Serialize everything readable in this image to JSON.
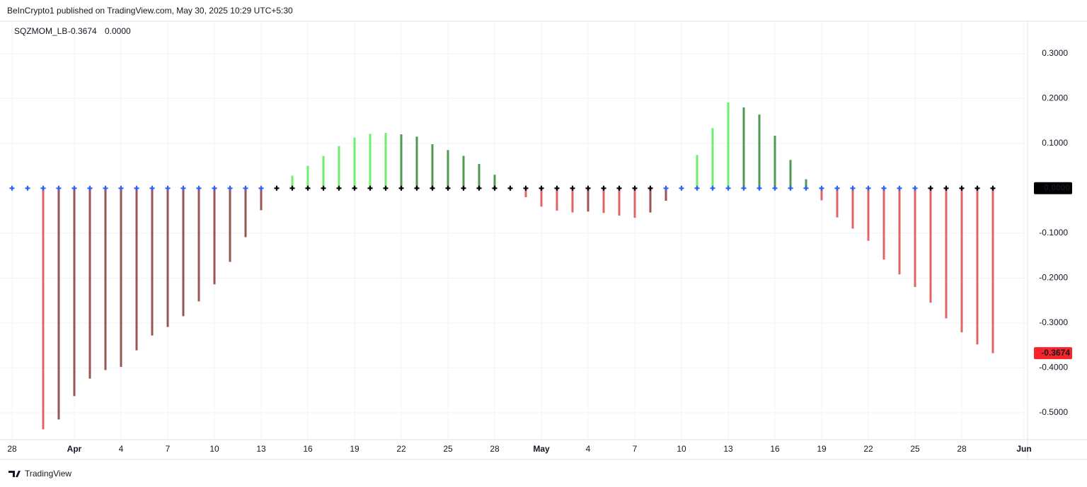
{
  "header": {
    "publisher": "BeInCrypto1 published on TradingView.com, May 30, 2025 10:29 UTC+5:30",
    "brand": "TradingView"
  },
  "chart_data": {
    "type": "bar",
    "title": "SQZMOM_LB",
    "x": [
      "Mar 28",
      "Mar 29",
      "Mar 30",
      "Mar 31",
      "Apr 1",
      "Apr 2",
      "Apr 3",
      "Apr 4",
      "Apr 5",
      "Apr 6",
      "Apr 7",
      "Apr 8",
      "Apr 9",
      "Apr 10",
      "Apr 11",
      "Apr 12",
      "Apr 13",
      "Apr 14",
      "Apr 15",
      "Apr 16",
      "Apr 17",
      "Apr 18",
      "Apr 19",
      "Apr 20",
      "Apr 21",
      "Apr 22",
      "Apr 23",
      "Apr 24",
      "Apr 25",
      "Apr 26",
      "Apr 27",
      "Apr 28",
      "Apr 29",
      "Apr 30",
      "May 1",
      "May 2",
      "May 3",
      "May 4",
      "May 5",
      "May 6",
      "May 7",
      "May 8",
      "May 9",
      "May 10",
      "May 11",
      "May 12",
      "May 13",
      "May 14",
      "May 15",
      "May 16",
      "May 17",
      "May 18",
      "May 19",
      "May 20",
      "May 21",
      "May 22",
      "May 23",
      "May 24",
      "May 25",
      "May 26",
      "May 27",
      "May 28",
      "May 29",
      "May 30"
    ],
    "series": [
      {
        "name": "momentum",
        "values": [
          null,
          null,
          -0.537,
          -0.515,
          -0.463,
          -0.424,
          -0.405,
          -0.398,
          -0.361,
          -0.328,
          -0.309,
          -0.285,
          -0.252,
          -0.214,
          -0.164,
          -0.109,
          -0.049,
          0,
          0.028,
          0.05,
          0.072,
          0.094,
          0.113,
          0.121,
          0.123,
          0.12,
          0.115,
          0.098,
          0.085,
          0.072,
          0.054,
          0.03,
          0,
          -0.02,
          -0.041,
          -0.05,
          -0.054,
          -0.052,
          -0.055,
          -0.061,
          -0.066,
          -0.054,
          -0.028,
          0,
          0.074,
          0.134,
          0.191,
          0.18,
          0.164,
          0.117,
          0.063,
          0.02,
          -0.027,
          -0.065,
          -0.09,
          -0.117,
          -0.159,
          -0.192,
          -0.22,
          -0.255,
          -0.29,
          -0.321,
          -0.348,
          -0.3674
        ],
        "palette": {
          "up_rising": "#6cf06c",
          "up_falling": "#4e9a4e",
          "down_falling": "#e06666",
          "down_rising": "#9b5450"
        }
      },
      {
        "name": "squeeze",
        "values": [
          0,
          0,
          0,
          0,
          0,
          0,
          0,
          0,
          0,
          0,
          0,
          0,
          0,
          0,
          0,
          0,
          0,
          0,
          0,
          0,
          0,
          0,
          0,
          0,
          0,
          0,
          0,
          0,
          0,
          0,
          0,
          0,
          0,
          0,
          0,
          0,
          0,
          0,
          0,
          0,
          0,
          0,
          0,
          0,
          0,
          0,
          0,
          0,
          0,
          0,
          0,
          0,
          0,
          0,
          0,
          0,
          0,
          0,
          0,
          0,
          0,
          0,
          0,
          0
        ],
        "colors": [
          "#2962ff",
          "#2962ff",
          "#2962ff",
          "#2962ff",
          "#2962ff",
          "#2962ff",
          "#2962ff",
          "#2962ff",
          "#2962ff",
          "#2962ff",
          "#2962ff",
          "#2962ff",
          "#2962ff",
          "#2962ff",
          "#2962ff",
          "#2962ff",
          "#2962ff",
          "#000000",
          "#000000",
          "#000000",
          "#000000",
          "#000000",
          "#000000",
          "#000000",
          "#000000",
          "#000000",
          "#000000",
          "#000000",
          "#000000",
          "#000000",
          "#000000",
          "#000000",
          "#000000",
          "#000000",
          "#000000",
          "#000000",
          "#000000",
          "#000000",
          "#000000",
          "#000000",
          "#000000",
          "#000000",
          "#2962ff",
          "#2962ff",
          "#2962ff",
          "#2962ff",
          "#2962ff",
          "#2962ff",
          "#2962ff",
          "#2962ff",
          "#2962ff",
          "#2962ff",
          "#2962ff",
          "#2962ff",
          "#2962ff",
          "#2962ff",
          "#2962ff",
          "#2962ff",
          "#2962ff",
          "#000000",
          "#000000",
          "#000000",
          "#000000",
          "#000000"
        ]
      }
    ],
    "price_labels": [
      {
        "value": 0,
        "label": "0.0000",
        "color": "#000000"
      },
      {
        "value": -0.3674,
        "label": "-0.3674",
        "color": "#f7252b"
      }
    ],
    "ylim": [
      -0.56,
      0.372
    ],
    "yticks": [
      {
        "value": 0.3,
        "label": "0.3000"
      },
      {
        "value": 0.2,
        "label": "0.2000"
      },
      {
        "value": 0.1,
        "label": "0.1000"
      },
      {
        "value": -0.1,
        "label": "-0.1000"
      },
      {
        "value": -0.2,
        "label": "-0.2000"
      },
      {
        "value": -0.3,
        "label": "-0.3000"
      },
      {
        "value": -0.4,
        "label": "-0.4000"
      },
      {
        "value": -0.5,
        "label": "-0.5000"
      }
    ],
    "xticks": [
      {
        "value": "Mar 28",
        "label": "28"
      },
      {
        "value": "Apr 1",
        "label": "Apr"
      },
      {
        "value": "Apr 4",
        "label": "4"
      },
      {
        "value": "Apr 7",
        "label": "7"
      },
      {
        "value": "Apr 10",
        "label": "10"
      },
      {
        "value": "Apr 13",
        "label": "13"
      },
      {
        "value": "Apr 16",
        "label": "16"
      },
      {
        "value": "Apr 19",
        "label": "19"
      },
      {
        "value": "Apr 22",
        "label": "22"
      },
      {
        "value": "Apr 25",
        "label": "25"
      },
      {
        "value": "Apr 28",
        "label": "28"
      },
      {
        "value": "May 1",
        "label": "May"
      },
      {
        "value": "May 4",
        "label": "4"
      },
      {
        "value": "May 7",
        "label": "7"
      },
      {
        "value": "May 10",
        "label": "10"
      },
      {
        "value": "May 13",
        "label": "13"
      },
      {
        "value": "May 16",
        "label": "16"
      },
      {
        "value": "May 19",
        "label": "19"
      },
      {
        "value": "May 22",
        "label": "22"
      },
      {
        "value": "May 25",
        "label": "25"
      },
      {
        "value": "May 28",
        "label": "28"
      },
      {
        "value": "Jun 1",
        "label": "Jun"
      }
    ],
    "grid": true
  }
}
